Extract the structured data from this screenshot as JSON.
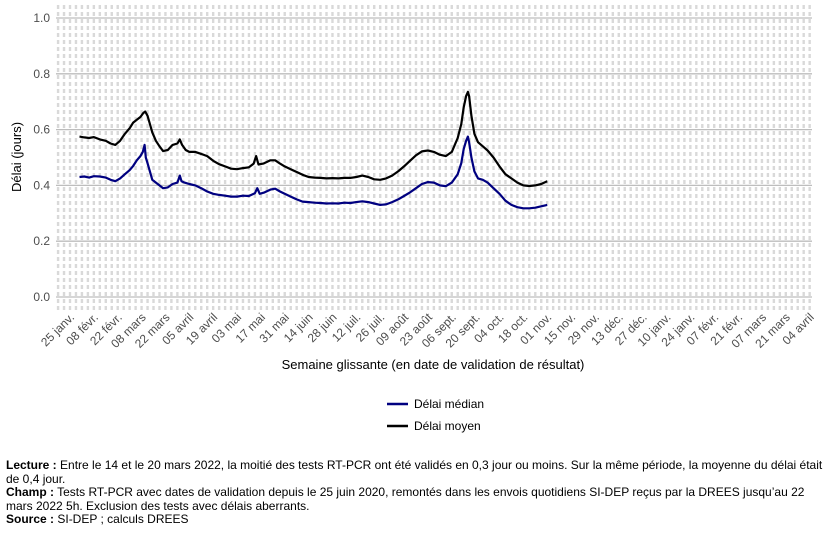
{
  "chart_data": {
    "type": "line",
    "title": "",
    "xlabel": "Semaine glissante (en date de validation de résultat)",
    "ylabel": "Délai (jours)",
    "ylim": [
      0,
      1.0
    ],
    "yticks": [
      "0.0",
      "0.2",
      "0.4",
      "0.6",
      "0.8",
      "1.0"
    ],
    "x_ticks": [
      "25 janv.",
      "08 févr.",
      "22 févr.",
      "08 mars",
      "22 mars",
      "05 avril",
      "19 avril",
      "03 mai",
      "17 mai",
      "31 mai",
      "14 juin",
      "28 juin",
      "12 juil.",
      "26 juil.",
      "09 août",
      "23 août",
      "06 sept.",
      "20 sept.",
      "04 oct.",
      "18 oct.",
      "01 nov.",
      "15 nov.",
      "29 nov.",
      "13 déc.",
      "27 déc.",
      "10 janv.",
      "24 janv.",
      "07 févr.",
      "21 févr.",
      "07 mars",
      "21 mars",
      "04 avril"
    ],
    "grid": true,
    "legend_position": "bottom",
    "x_unit": "weeks from 25 janv. tick",
    "series": [
      {
        "name": "Délai médian",
        "color": "#000080",
        "points": [
          [
            0.8,
            0.43
          ],
          [
            1.2,
            0.432
          ],
          [
            1.6,
            0.428
          ],
          [
            2.0,
            0.433
          ],
          [
            2.5,
            0.432
          ],
          [
            3.0,
            0.428
          ],
          [
            3.4,
            0.42
          ],
          [
            3.8,
            0.415
          ],
          [
            4.2,
            0.425
          ],
          [
            4.6,
            0.44
          ],
          [
            5.0,
            0.455
          ],
          [
            5.3,
            0.47
          ],
          [
            5.6,
            0.49
          ],
          [
            5.9,
            0.505
          ],
          [
            6.1,
            0.52
          ],
          [
            6.25,
            0.545
          ],
          [
            6.35,
            0.5
          ],
          [
            6.5,
            0.48
          ],
          [
            6.7,
            0.45
          ],
          [
            6.9,
            0.42
          ],
          [
            7.2,
            0.41
          ],
          [
            7.5,
            0.4
          ],
          [
            7.8,
            0.39
          ],
          [
            8.2,
            0.393
          ],
          [
            8.6,
            0.405
          ],
          [
            9.0,
            0.41
          ],
          [
            9.2,
            0.435
          ],
          [
            9.35,
            0.415
          ],
          [
            9.6,
            0.41
          ],
          [
            10.0,
            0.405
          ],
          [
            10.5,
            0.4
          ],
          [
            11.0,
            0.39
          ],
          [
            11.5,
            0.378
          ],
          [
            12.0,
            0.37
          ],
          [
            12.5,
            0.366
          ],
          [
            13.0,
            0.363
          ],
          [
            13.5,
            0.36
          ],
          [
            14.0,
            0.36
          ],
          [
            14.5,
            0.363
          ],
          [
            15.0,
            0.362
          ],
          [
            15.5,
            0.372
          ],
          [
            15.7,
            0.39
          ],
          [
            15.9,
            0.37
          ],
          [
            16.3,
            0.375
          ],
          [
            16.8,
            0.385
          ],
          [
            17.2,
            0.388
          ],
          [
            17.6,
            0.378
          ],
          [
            18.0,
            0.37
          ],
          [
            18.5,
            0.36
          ],
          [
            19.0,
            0.35
          ],
          [
            19.5,
            0.342
          ],
          [
            20.0,
            0.34
          ],
          [
            20.5,
            0.338
          ],
          [
            21.0,
            0.337
          ],
          [
            21.5,
            0.335
          ],
          [
            22.0,
            0.336
          ],
          [
            22.5,
            0.335
          ],
          [
            23.0,
            0.338
          ],
          [
            23.5,
            0.337
          ],
          [
            24.0,
            0.34
          ],
          [
            24.5,
            0.343
          ],
          [
            25.0,
            0.34
          ],
          [
            25.5,
            0.335
          ],
          [
            26.0,
            0.33
          ],
          [
            26.5,
            0.332
          ],
          [
            27.0,
            0.34
          ],
          [
            27.5,
            0.35
          ],
          [
            28.0,
            0.362
          ],
          [
            28.5,
            0.375
          ],
          [
            29.0,
            0.39
          ],
          [
            29.5,
            0.405
          ],
          [
            30.0,
            0.412
          ],
          [
            30.5,
            0.41
          ],
          [
            31.0,
            0.4
          ],
          [
            31.5,
            0.397
          ],
          [
            32.0,
            0.41
          ],
          [
            32.5,
            0.44
          ],
          [
            32.8,
            0.48
          ],
          [
            33.0,
            0.53
          ],
          [
            33.2,
            0.56
          ],
          [
            33.35,
            0.575
          ],
          [
            33.45,
            0.555
          ],
          [
            33.65,
            0.5
          ],
          [
            33.9,
            0.45
          ],
          [
            34.2,
            0.425
          ],
          [
            34.6,
            0.42
          ],
          [
            35.0,
            0.41
          ],
          [
            35.5,
            0.39
          ],
          [
            36.0,
            0.37
          ],
          [
            36.5,
            0.345
          ],
          [
            37.0,
            0.33
          ],
          [
            37.5,
            0.322
          ],
          [
            38.0,
            0.318
          ],
          [
            38.5,
            0.318
          ],
          [
            39.0,
            0.32
          ],
          [
            39.5,
            0.325
          ],
          [
            40.0,
            0.33
          ]
        ]
      },
      {
        "name": "Délai moyen",
        "color": "#000000",
        "points": [
          [
            0.8,
            0.575
          ],
          [
            1.2,
            0.572
          ],
          [
            1.6,
            0.57
          ],
          [
            2.0,
            0.573
          ],
          [
            2.5,
            0.565
          ],
          [
            3.0,
            0.56
          ],
          [
            3.4,
            0.55
          ],
          [
            3.8,
            0.545
          ],
          [
            4.2,
            0.56
          ],
          [
            4.6,
            0.585
          ],
          [
            5.0,
            0.605
          ],
          [
            5.3,
            0.625
          ],
          [
            5.6,
            0.635
          ],
          [
            5.9,
            0.645
          ],
          [
            6.15,
            0.66
          ],
          [
            6.3,
            0.665
          ],
          [
            6.5,
            0.65
          ],
          [
            6.7,
            0.62
          ],
          [
            6.9,
            0.59
          ],
          [
            7.2,
            0.56
          ],
          [
            7.5,
            0.54
          ],
          [
            7.8,
            0.523
          ],
          [
            8.2,
            0.527
          ],
          [
            8.6,
            0.545
          ],
          [
            9.0,
            0.55
          ],
          [
            9.2,
            0.565
          ],
          [
            9.4,
            0.545
          ],
          [
            9.7,
            0.527
          ],
          [
            10.0,
            0.52
          ],
          [
            10.5,
            0.52
          ],
          [
            11.0,
            0.513
          ],
          [
            11.5,
            0.505
          ],
          [
            12.0,
            0.488
          ],
          [
            12.5,
            0.476
          ],
          [
            13.0,
            0.468
          ],
          [
            13.5,
            0.46
          ],
          [
            14.0,
            0.458
          ],
          [
            14.5,
            0.462
          ],
          [
            15.0,
            0.465
          ],
          [
            15.4,
            0.478
          ],
          [
            15.6,
            0.505
          ],
          [
            15.8,
            0.475
          ],
          [
            16.2,
            0.478
          ],
          [
            16.8,
            0.49
          ],
          [
            17.2,
            0.49
          ],
          [
            17.6,
            0.478
          ],
          [
            18.0,
            0.468
          ],
          [
            18.5,
            0.458
          ],
          [
            19.0,
            0.448
          ],
          [
            19.5,
            0.438
          ],
          [
            20.0,
            0.43
          ],
          [
            20.5,
            0.428
          ],
          [
            21.0,
            0.427
          ],
          [
            21.5,
            0.425
          ],
          [
            22.0,
            0.426
          ],
          [
            22.5,
            0.425
          ],
          [
            23.0,
            0.427
          ],
          [
            23.5,
            0.427
          ],
          [
            24.0,
            0.43
          ],
          [
            24.5,
            0.435
          ],
          [
            25.0,
            0.43
          ],
          [
            25.5,
            0.422
          ],
          [
            26.0,
            0.42
          ],
          [
            26.5,
            0.425
          ],
          [
            27.0,
            0.435
          ],
          [
            27.5,
            0.45
          ],
          [
            28.0,
            0.468
          ],
          [
            28.5,
            0.488
          ],
          [
            29.0,
            0.508
          ],
          [
            29.5,
            0.522
          ],
          [
            30.0,
            0.525
          ],
          [
            30.5,
            0.52
          ],
          [
            31.0,
            0.51
          ],
          [
            31.5,
            0.505
          ],
          [
            32.0,
            0.52
          ],
          [
            32.5,
            0.57
          ],
          [
            32.8,
            0.62
          ],
          [
            33.0,
            0.68
          ],
          [
            33.2,
            0.72
          ],
          [
            33.35,
            0.735
          ],
          [
            33.45,
            0.72
          ],
          [
            33.65,
            0.65
          ],
          [
            33.9,
            0.585
          ],
          [
            34.2,
            0.555
          ],
          [
            34.6,
            0.54
          ],
          [
            35.0,
            0.525
          ],
          [
            35.5,
            0.5
          ],
          [
            36.0,
            0.468
          ],
          [
            36.5,
            0.44
          ],
          [
            37.0,
            0.425
          ],
          [
            37.5,
            0.41
          ],
          [
            38.0,
            0.4
          ],
          [
            38.5,
            0.398
          ],
          [
            39.0,
            0.4
          ],
          [
            39.5,
            0.405
          ],
          [
            40.0,
            0.415
          ]
        ]
      }
    ]
  },
  "notes": {
    "lecture_label": "Lecture :",
    "lecture_text": " Entre le 14 et le 20 mars 2022, la moitié des tests RT-PCR ont été validés en 0,3 jour ou moins. Sur la même période, la moyenne du délai était de 0,4 jour.",
    "champ_label": "Champ :",
    "champ_text": " Tests RT-PCR avec dates de validation depuis le 25 juin 2020, remontés dans les envois quotidiens SI-DEP reçus par la DREES jusqu’au 22 mars 2022 5h. Exclusion des tests avec délais aberrants.",
    "source_label": "Source :",
    "source_text": " SI-DEP ; calculs DREES"
  }
}
